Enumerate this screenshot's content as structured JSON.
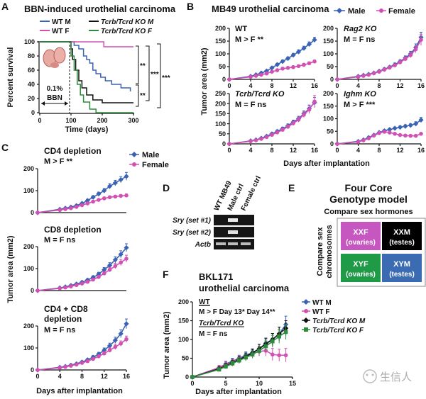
{
  "panel_labels": {
    "A": "A",
    "B": "B",
    "C": "C",
    "D": "D",
    "E": "E",
    "F": "F"
  },
  "colors": {
    "blue": "#3a62b5",
    "magenta": "#d24fb3",
    "black": "#111111",
    "green": "#2e8b3c",
    "xxf": "#c656c0",
    "xxm": "#000000",
    "xyf": "#1f9a47",
    "xym": "#3b6cb3"
  },
  "panel_a": {
    "title": "BBN-induced urothelial carcinoma",
    "legend": [
      {
        "label": "WT M",
        "color": "#3a62b5"
      },
      {
        "label": "WT F",
        "color": "#d24fb3"
      },
      {
        "label": "Tcrb/Tcrd KO M",
        "color": "#111111"
      },
      {
        "label": "Tcrb/Tcrd KO F",
        "color": "#2e8b3c"
      }
    ],
    "inset_text": "0.1%",
    "bbn_label": "BBN",
    "stars": [
      "**",
      "**",
      "***",
      "***"
    ]
  },
  "panel_b": {
    "title": "MB49 urothelial carcinoma",
    "legend": [
      {
        "label": "Male",
        "color": "#3a62b5"
      },
      {
        "label": "Female",
        "color": "#d24fb3"
      }
    ],
    "subplots": [
      {
        "name": "WT",
        "stat": "M > F **"
      },
      {
        "name": "Rag2 KO",
        "stat": "M = F ns"
      },
      {
        "name": "Tcrb/Tcrd KO",
        "stat": "M = F ns"
      },
      {
        "name": "Ighm KO",
        "stat": "M > F ***"
      }
    ]
  },
  "panel_c": {
    "legend": [
      {
        "label": "Male",
        "color": "#3a62b5"
      },
      {
        "label": "Female",
        "color": "#d24fb3"
      }
    ],
    "subplots": [
      {
        "name": "CD4 depletion",
        "stat": "M > F **"
      },
      {
        "name": "CD8 depletion",
        "stat": "M = F ns"
      },
      {
        "name": "CD4 + CD8",
        "name2": "depletion",
        "stat": "M = F ns"
      }
    ]
  },
  "panel_d": {
    "columns": [
      "WT MB49",
      "Male ctrl",
      "Female ctrl"
    ],
    "rows": [
      "Sry (set #1)",
      "Sry (set #2)",
      "Actb"
    ]
  },
  "panel_e": {
    "title1": "Four Core",
    "title2": "Genotype model",
    "top": "Compare sex hormones",
    "side1": "Compare sex",
    "side2": "chromosomes",
    "cells": [
      {
        "k": "XXF",
        "s": "(ovaries)"
      },
      {
        "k": "XXM",
        "s": "(testes)"
      },
      {
        "k": "XYF",
        "s": "(ovaries)"
      },
      {
        "k": "XYM",
        "s": "(testes)"
      }
    ]
  },
  "panel_f": {
    "title1": "BKL171",
    "title2": "urothelial carcinoma",
    "wt": "WT",
    "wt_stat": "M > F  Day 13* Day 14**",
    "ko": "Tcrb/Tcrd KO",
    "ko_stat": "M = F ns",
    "legend": [
      {
        "label": "WT M",
        "color": "#3a62b5"
      },
      {
        "label": "WT F",
        "color": "#d24fb3"
      },
      {
        "label": "Tcrb/Tcrd KO M",
        "color": "#111111"
      },
      {
        "label": "Tcrb/Tcrd KO F",
        "color": "#2e8b3c"
      }
    ]
  },
  "watermark": "生信人",
  "chart_data": [
    {
      "id": "A",
      "type": "line",
      "title": "BBN-induced urothelial carcinoma",
      "xlabel": "Time (days)",
      "ylabel": "Percent survival",
      "xlim": [
        0,
        300
      ],
      "ylim": [
        0,
        100
      ],
      "xticks": [
        0,
        100,
        200,
        300
      ],
      "yticks": [
        0,
        20,
        40,
        60,
        80,
        100
      ],
      "series": [
        {
          "name": "WT M",
          "color": "#3a62b5",
          "x": [
            0,
            95,
            110,
            125,
            140,
            150,
            160,
            170,
            180,
            195,
            210,
            230,
            260,
            290
          ],
          "y": [
            100,
            100,
            95,
            90,
            80,
            75,
            70,
            60,
            55,
            50,
            45,
            40,
            35,
            30
          ]
        },
        {
          "name": "WT F",
          "color": "#d24fb3",
          "x": [
            0,
            200,
            205,
            300
          ],
          "y": [
            100,
            100,
            93,
            93
          ]
        },
        {
          "name": "Tcrb/Tcrd KO M",
          "color": "#111111",
          "x": [
            0,
            95,
            100,
            105,
            115,
            125,
            135,
            150,
            170,
            200,
            300
          ],
          "y": [
            100,
            100,
            90,
            75,
            60,
            45,
            35,
            25,
            18,
            14,
            14
          ]
        },
        {
          "name": "Tcrb/Tcrd KO F",
          "color": "#2e8b3c",
          "x": [
            0,
            95,
            100,
            110,
            120,
            130,
            140,
            160,
            180,
            300
          ],
          "y": [
            100,
            100,
            80,
            60,
            40,
            25,
            15,
            5,
            0,
            0
          ]
        }
      ]
    },
    {
      "id": "B-WT",
      "type": "line",
      "xlabel": "Days after implantation",
      "ylabel": "Tumor area (mm2)",
      "xlim": [
        0,
        16
      ],
      "ylim": [
        0,
        200
      ],
      "xticks": [
        0,
        4,
        8,
        12,
        16
      ],
      "yticks": [
        0,
        50,
        100,
        150,
        200
      ],
      "x": [
        4,
        5,
        6,
        7,
        8,
        9,
        10,
        11,
        12,
        13,
        14,
        15,
        16
      ],
      "series": [
        {
          "name": "Male",
          "color": "#3a62b5",
          "values": [
            12,
            18,
            25,
            33,
            45,
            58,
            70,
            82,
            95,
            108,
            122,
            138,
            155
          ],
          "err": [
            3,
            3,
            4,
            4,
            5,
            5,
            6,
            6,
            7,
            8,
            8,
            9,
            10
          ]
        },
        {
          "name": "Female",
          "color": "#d24fb3",
          "values": [
            10,
            14,
            18,
            23,
            30,
            36,
            42,
            45,
            48,
            52,
            57,
            63,
            70
          ],
          "err": [
            3,
            3,
            3,
            4,
            4,
            4,
            5,
            5,
            5,
            5,
            6,
            6,
            6
          ]
        }
      ]
    },
    {
      "id": "B-Rag2",
      "type": "line",
      "xlim": [
        0,
        16
      ],
      "ylim": [
        0,
        200
      ],
      "xticks": [
        0,
        4,
        8,
        12,
        16
      ],
      "yticks": [
        0,
        50,
        100,
        150,
        200
      ],
      "x": [
        4,
        5,
        6,
        7,
        8,
        9,
        10,
        11,
        12,
        13,
        14,
        15,
        16
      ],
      "series": [
        {
          "name": "Male",
          "color": "#3a62b5",
          "values": [
            12,
            16,
            20,
            25,
            32,
            40,
            48,
            58,
            70,
            84,
            100,
            125,
            165
          ],
          "err": [
            3,
            3,
            3,
            4,
            4,
            5,
            5,
            6,
            7,
            8,
            10,
            14,
            20
          ]
        },
        {
          "name": "Female",
          "color": "#d24fb3",
          "values": [
            10,
            14,
            18,
            24,
            30,
            38,
            46,
            55,
            67,
            80,
            95,
            118,
            155
          ],
          "err": [
            3,
            3,
            3,
            4,
            4,
            5,
            5,
            6,
            7,
            8,
            10,
            14,
            22
          ]
        }
      ]
    },
    {
      "id": "B-Tcrb",
      "type": "line",
      "xlim": [
        0,
        16
      ],
      "ylim": [
        0,
        250
      ],
      "xticks": [
        0,
        4,
        8,
        12,
        16
      ],
      "yticks": [
        0,
        50,
        100,
        150,
        200,
        250
      ],
      "x": [
        4,
        5,
        6,
        7,
        8,
        9,
        10,
        11,
        12,
        13,
        14,
        15,
        16
      ],
      "series": [
        {
          "name": "Male",
          "color": "#3a62b5",
          "values": [
            15,
            20,
            28,
            38,
            50,
            62,
            75,
            90,
            108,
            125,
            150,
            175,
            205
          ],
          "err": [
            4,
            4,
            5,
            5,
            6,
            7,
            8,
            9,
            10,
            12,
            14,
            18,
            25
          ]
        },
        {
          "name": "Female",
          "color": "#d24fb3",
          "values": [
            13,
            18,
            25,
            34,
            45,
            57,
            70,
            85,
            102,
            120,
            145,
            170,
            210
          ],
          "err": [
            4,
            4,
            5,
            5,
            6,
            7,
            8,
            9,
            10,
            12,
            14,
            20,
            30
          ]
        }
      ]
    },
    {
      "id": "B-Ighm",
      "type": "line",
      "xlim": [
        0,
        16
      ],
      "ylim": [
        0,
        200
      ],
      "xticks": [
        0,
        4,
        8,
        12,
        16
      ],
      "yticks": [
        0,
        50,
        100,
        150,
        200
      ],
      "x": [
        4,
        5,
        6,
        7,
        8,
        9,
        10,
        11,
        12,
        13,
        14,
        15,
        16
      ],
      "series": [
        {
          "name": "Male",
          "color": "#3a62b5",
          "values": [
            10,
            16,
            25,
            35,
            45,
            52,
            57,
            62,
            66,
            70,
            74,
            80,
            95
          ],
          "err": [
            3,
            3,
            4,
            4,
            5,
            5,
            5,
            5,
            6,
            6,
            6,
            8,
            10
          ]
        },
        {
          "name": "Female",
          "color": "#d24fb3",
          "values": [
            8,
            14,
            22,
            33,
            43,
            48,
            45,
            40,
            35,
            33,
            32,
            32,
            40
          ],
          "err": [
            3,
            3,
            4,
            4,
            5,
            5,
            5,
            4,
            4,
            4,
            4,
            4,
            5
          ]
        }
      ]
    },
    {
      "id": "C-CD4",
      "type": "line",
      "xlim": [
        0,
        16
      ],
      "ylim": [
        0,
        200
      ],
      "xticks": [
        0,
        4,
        8,
        12,
        16
      ],
      "yticks": [
        0,
        100,
        200
      ],
      "x": [
        4,
        5,
        6,
        7,
        8,
        9,
        10,
        11,
        12,
        13,
        14,
        15,
        16
      ],
      "series": [
        {
          "name": "Male",
          "color": "#3a62b5",
          "values": [
            15,
            20,
            25,
            32,
            42,
            55,
            70,
            85,
            100,
            120,
            135,
            150,
            165
          ],
          "err": [
            3,
            3,
            4,
            4,
            5,
            6,
            7,
            8,
            10,
            12,
            12,
            14,
            18
          ]
        },
        {
          "name": "Female",
          "color": "#d24fb3",
          "values": [
            12,
            16,
            20,
            26,
            34,
            42,
            50,
            58,
            65,
            70,
            73,
            76,
            78
          ],
          "err": [
            3,
            3,
            3,
            4,
            4,
            5,
            5,
            5,
            6,
            6,
            6,
            6,
            7
          ]
        }
      ]
    },
    {
      "id": "C-CD8",
      "type": "line",
      "xlim": [
        0,
        16
      ],
      "ylim": [
        0,
        200
      ],
      "xticks": [
        0,
        4,
        8,
        12,
        16
      ],
      "yticks": [
        0,
        100,
        200
      ],
      "x": [
        4,
        5,
        6,
        7,
        8,
        9,
        10,
        11,
        12,
        13,
        14,
        15,
        16
      ],
      "series": [
        {
          "name": "Male",
          "color": "#3a62b5",
          "values": [
            12,
            17,
            23,
            30,
            38,
            48,
            60,
            75,
            95,
            115,
            140,
            165,
            195
          ],
          "err": [
            3,
            3,
            4,
            4,
            5,
            6,
            7,
            8,
            10,
            12,
            14,
            16,
            18
          ]
        },
        {
          "name": "Female",
          "color": "#d24fb3",
          "values": [
            10,
            14,
            19,
            25,
            32,
            40,
            50,
            62,
            78,
            95,
            112,
            128,
            145
          ],
          "err": [
            3,
            3,
            3,
            4,
            4,
            5,
            6,
            7,
            8,
            10,
            12,
            14,
            16
          ]
        }
      ]
    },
    {
      "id": "C-CD4CD8",
      "type": "line",
      "xlim": [
        0,
        16
      ],
      "ylim": [
        0,
        200
      ],
      "xticks": [
        0,
        4,
        8,
        12,
        16
      ],
      "yticks": [
        0,
        100,
        200
      ],
      "x": [
        4,
        5,
        6,
        7,
        8,
        9,
        10,
        11,
        12,
        13,
        14,
        15,
        16
      ],
      "series": [
        {
          "name": "Male",
          "color": "#3a62b5",
          "values": [
            12,
            16,
            22,
            28,
            36,
            46,
            58,
            72,
            90,
            110,
            135,
            165,
            210
          ],
          "err": [
            3,
            3,
            4,
            4,
            5,
            6,
            7,
            8,
            10,
            12,
            14,
            18,
            22
          ]
        },
        {
          "name": "Female",
          "color": "#d24fb3",
          "values": [
            10,
            14,
            19,
            25,
            32,
            40,
            50,
            62,
            75,
            90,
            105,
            120,
            140
          ],
          "err": [
            3,
            3,
            3,
            4,
            4,
            5,
            6,
            7,
            8,
            10,
            12,
            12,
            14
          ]
        }
      ]
    },
    {
      "id": "F",
      "type": "line",
      "xlabel": "Days after implantation",
      "ylabel": "Tumor area (mm2)",
      "xlim": [
        0,
        15
      ],
      "ylim": [
        0,
        200
      ],
      "xticks": [
        0,
        5,
        10,
        15
      ],
      "yticks": [
        0,
        50,
        100,
        150,
        200
      ],
      "x": [
        4,
        5,
        6,
        7,
        8,
        9,
        10,
        11,
        12,
        13,
        14
      ],
      "series": [
        {
          "name": "WT M",
          "color": "#3a62b5",
          "values": [
            25,
            35,
            42,
            50,
            58,
            65,
            75,
            90,
            100,
            115,
            140
          ],
          "err": [
            6,
            7,
            8,
            8,
            9,
            10,
            12,
            14,
            16,
            18,
            22
          ]
        },
        {
          "name": "WT F",
          "color": "#d24fb3",
          "values": [
            25,
            33,
            40,
            48,
            55,
            62,
            68,
            70,
            60,
            58,
            58
          ],
          "err": [
            6,
            7,
            8,
            8,
            9,
            10,
            12,
            14,
            16,
            16,
            18
          ]
        },
        {
          "name": "Tcrb/Tcrd KO M",
          "color": "#111111",
          "values": [
            22,
            30,
            38,
            46,
            55,
            64,
            75,
            88,
            100,
            115,
            130
          ],
          "err": [
            5,
            6,
            7,
            8,
            9,
            10,
            12,
            14,
            16,
            18,
            20
          ]
        },
        {
          "name": "Tcrb/Tcrd KO F",
          "color": "#2e8b3c",
          "values": [
            20,
            28,
            36,
            44,
            52,
            60,
            70,
            82,
            95,
            108,
            120
          ],
          "err": [
            5,
            6,
            7,
            8,
            9,
            10,
            12,
            14,
            16,
            18,
            20
          ]
        }
      ]
    }
  ]
}
